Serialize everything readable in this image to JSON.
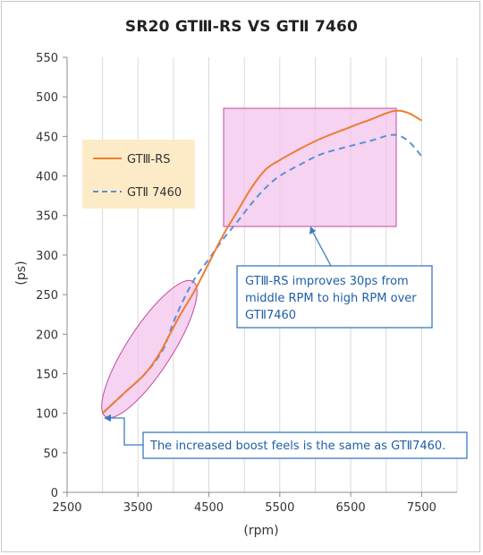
{
  "chart_data": {
    "type": "line",
    "title": "SR20 GTⅢ-RS VS GTⅡ 7460",
    "xlabel": "(rpm)",
    "ylabel": "(ps)",
    "xlim": [
      2500,
      8000
    ],
    "ylim": [
      0,
      550
    ],
    "x_ticks": [
      2500,
      3500,
      4500,
      5500,
      6500,
      7500
    ],
    "y_ticks": [
      0,
      50,
      100,
      150,
      200,
      250,
      300,
      350,
      400,
      450,
      500,
      550
    ],
    "grid": {
      "vertical": true,
      "horizontal": false
    },
    "legend_position": "upper-left",
    "series": [
      {
        "name": "GTⅢ-RS",
        "color": "#ed7d31",
        "style": "solid",
        "x": [
          3000,
          3300,
          3600,
          3800,
          3950,
          4100,
          4300,
          4500,
          4700,
          4900,
          5100,
          5300,
          5500,
          5800,
          6100,
          6500,
          6800,
          7100,
          7300,
          7500
        ],
        "y": [
          100,
          125,
          150,
          175,
          200,
          225,
          255,
          290,
          325,
          355,
          385,
          408,
          420,
          435,
          448,
          462,
          472,
          482,
          480,
          470
        ]
      },
      {
        "name": "GTⅡ 7460",
        "color": "#5b8fd6",
        "style": "dashed",
        "x": [
          3000,
          3300,
          3600,
          3850,
          4000,
          4150,
          4300,
          4500,
          4700,
          4900,
          5100,
          5300,
          5500,
          5800,
          6100,
          6500,
          6800,
          7100,
          7300,
          7500
        ],
        "y": [
          100,
          125,
          150,
          180,
          215,
          245,
          270,
          295,
          320,
          342,
          365,
          385,
          400,
          415,
          428,
          438,
          445,
          452,
          445,
          425
        ]
      }
    ],
    "annotations": [
      "GTⅢ-RS improves 30ps from middle RPM to high RPM over GTⅡ7460",
      "The increased boost feels is the same as GTⅡ7460."
    ]
  },
  "colors": {
    "highlight_fill": "#f2c4ec",
    "highlight_stroke": "#c5479e",
    "legend_bg": "#fdebc8",
    "callout_stroke": "#3a78c2"
  }
}
